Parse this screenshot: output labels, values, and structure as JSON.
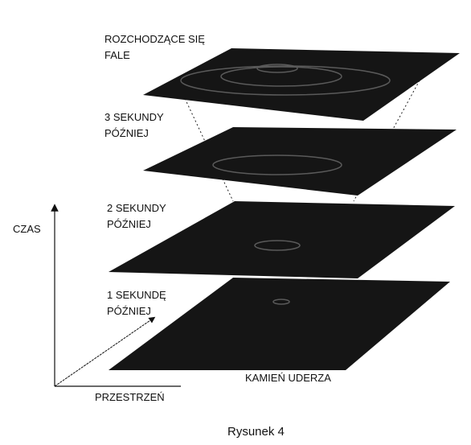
{
  "planes": [
    {
      "label": [
        "ROZCHODZĄCE SIĘ",
        "FALE"
      ]
    },
    {
      "label": [
        "3 SEKUNDY",
        "PÓŹNIEJ"
      ]
    },
    {
      "label": [
        "2 SEKUNDY",
        "PÓŹNIEJ"
      ]
    },
    {
      "label": [
        "1 SEKUNDĘ",
        "PÓŹNIEJ"
      ]
    }
  ],
  "stone_label": "KAMIEŃ UDERZA",
  "axes": {
    "time": "CZAS",
    "space": "PRZESTRZEŃ"
  },
  "caption": "Rysunek 4"
}
